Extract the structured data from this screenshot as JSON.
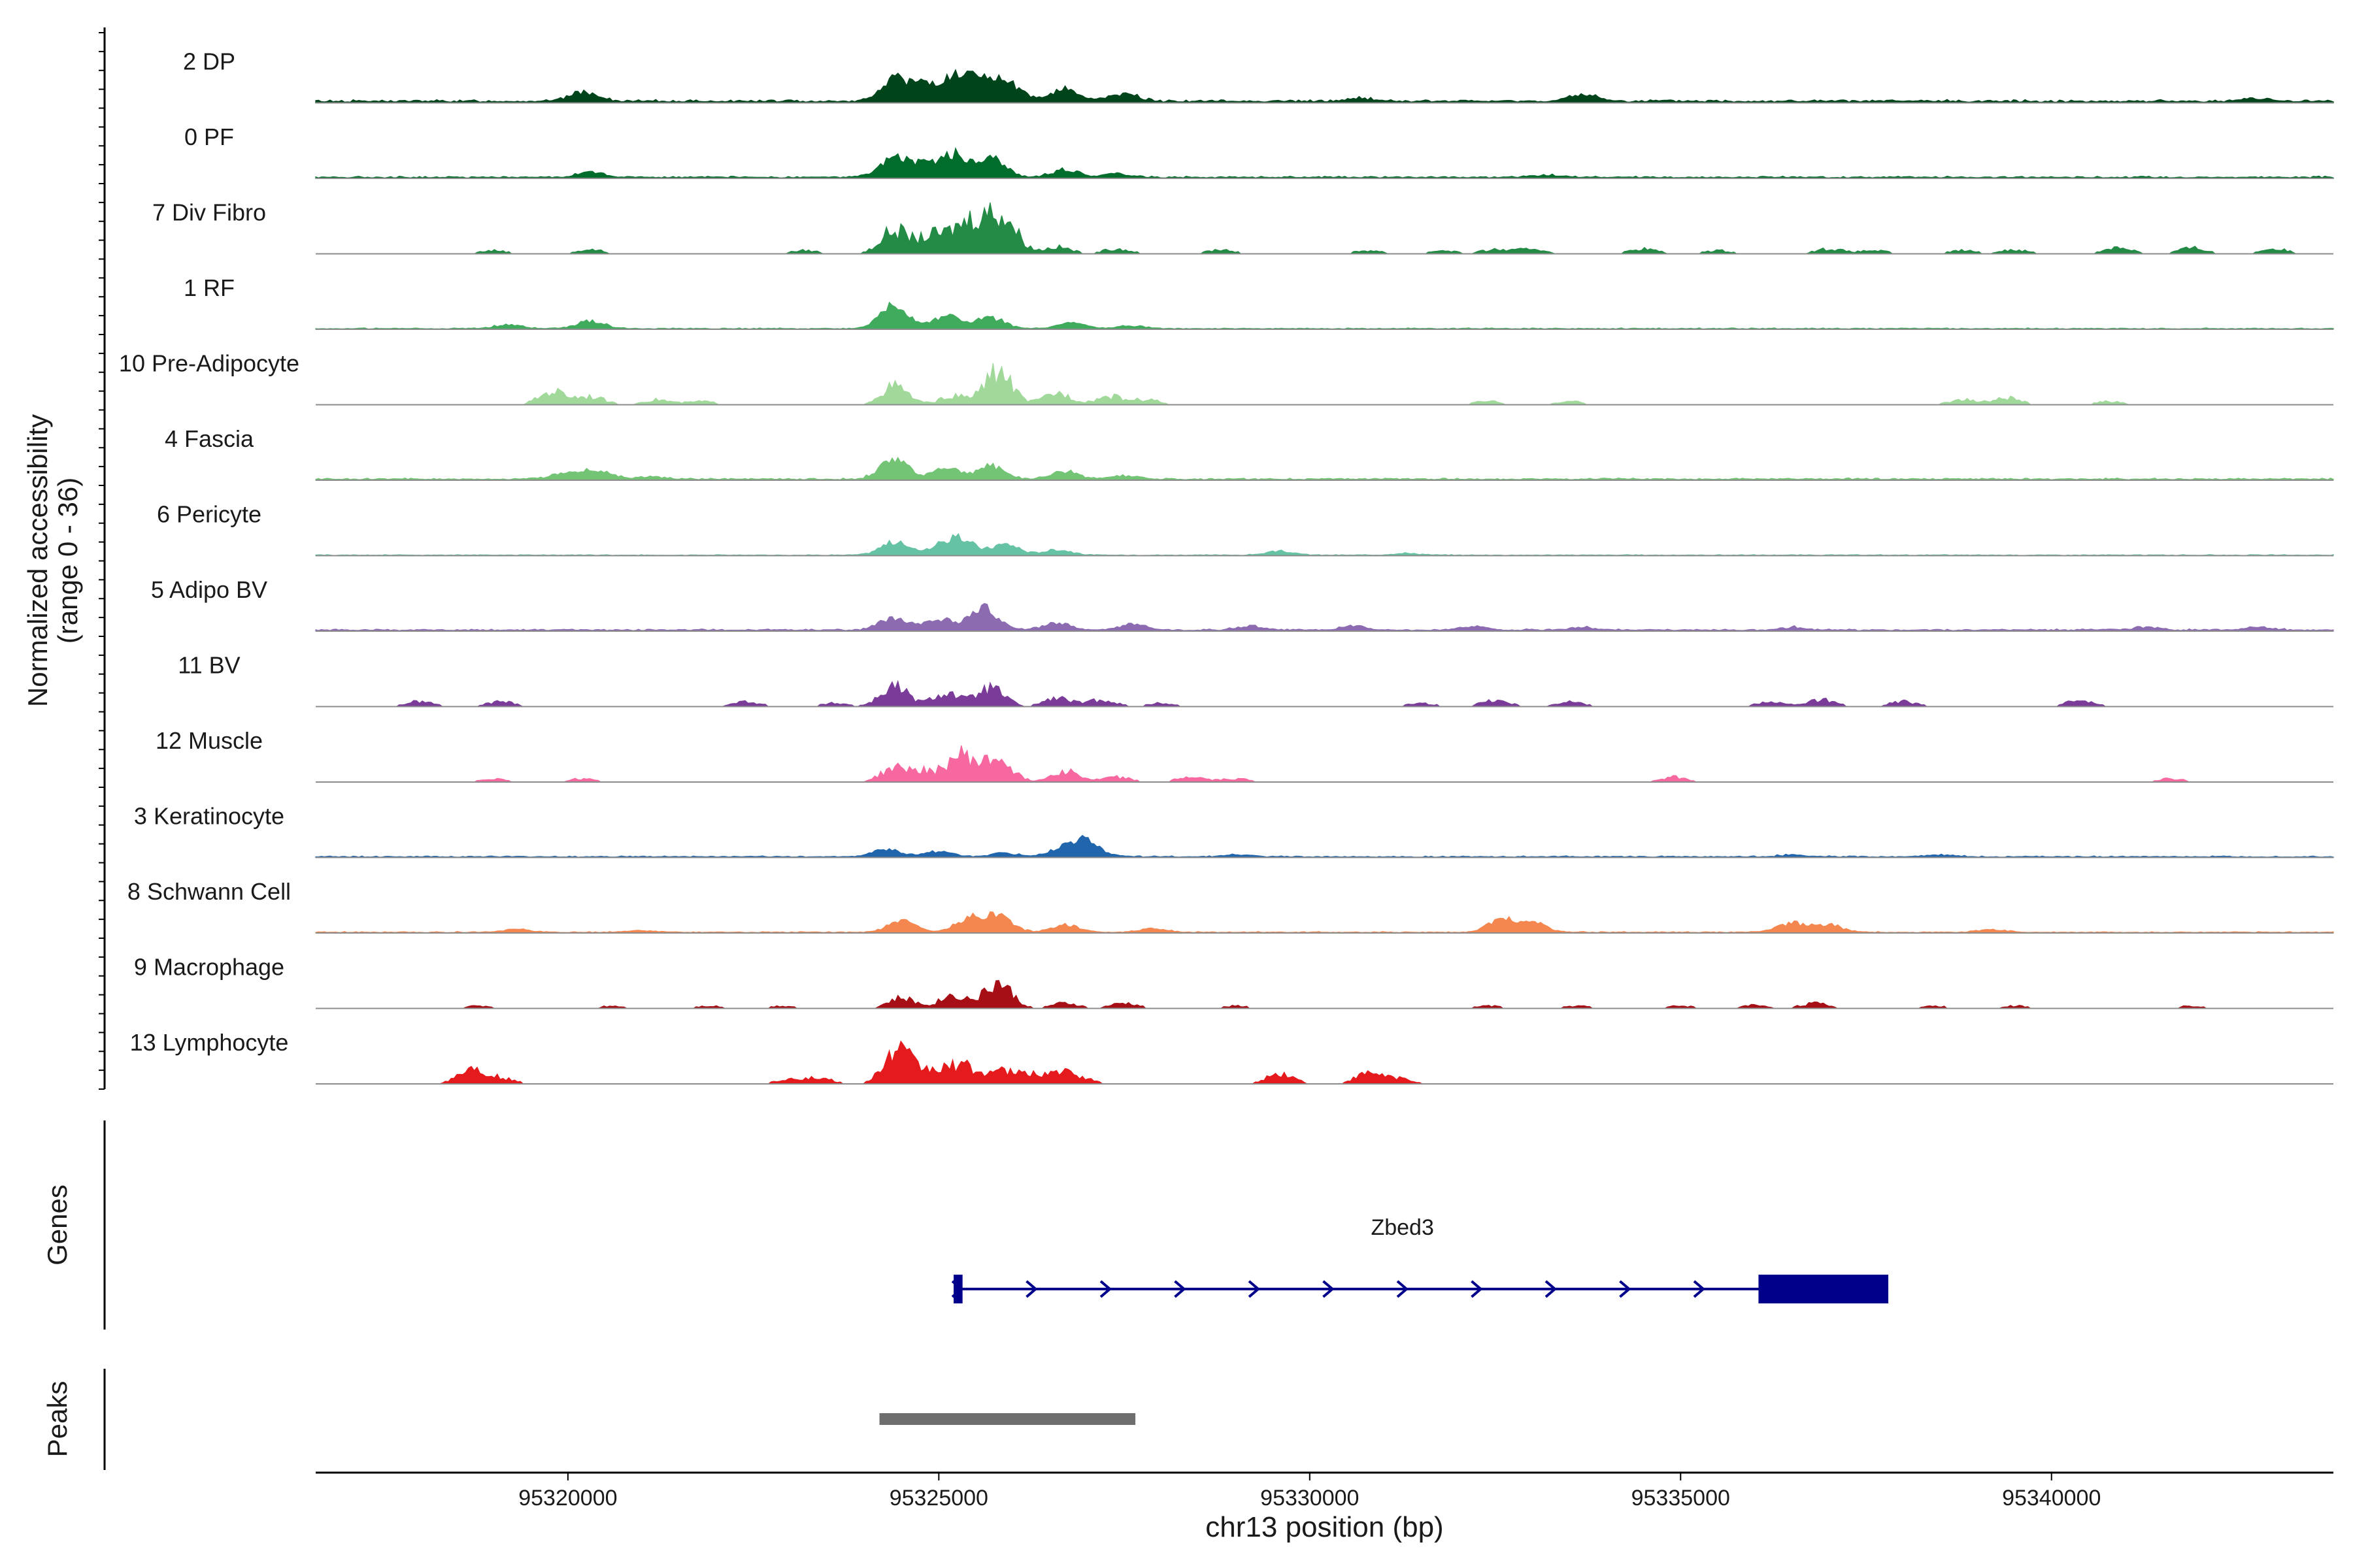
{
  "chart_data": {
    "type": "area",
    "xlabel": "chr13 position (bp)",
    "ylabel_line1": "Normalized accessibility",
    "ylabel_line2": "(range 0 - 36)",
    "y_range": [
      0,
      36
    ],
    "xlim": [
      95316600,
      95343800
    ],
    "xticks": [
      95320000,
      95325000,
      95330000,
      95335000,
      95340000
    ],
    "xtick_labels": [
      "95320000",
      "95325000",
      "95330000",
      "95335000",
      "95340000"
    ],
    "tracks": [
      {
        "name": "2 DP",
        "color": "#00441b",
        "style": "continuous",
        "baseline": 1.2,
        "peaks": [
          [
            95320200,
            5
          ],
          [
            95324400,
            12
          ],
          [
            95324800,
            8
          ],
          [
            95325200,
            10
          ],
          [
            95325500,
            9
          ],
          [
            95325900,
            11
          ],
          [
            95326700,
            7
          ],
          [
            95327500,
            4
          ],
          [
            95330700,
            1.5
          ],
          [
            95333700,
            3.5
          ],
          [
            95342800,
            1.5
          ]
        ]
      },
      {
        "name": "0 PF",
        "color": "#006d2c",
        "style": "continuous",
        "baseline": 0.8,
        "peaks": [
          [
            95320300,
            2.5
          ],
          [
            95324400,
            11
          ],
          [
            95324800,
            6
          ],
          [
            95325200,
            12
          ],
          [
            95325700,
            10
          ],
          [
            95326700,
            4
          ],
          [
            95327400,
            2
          ],
          [
            95333200,
            1
          ]
        ]
      },
      {
        "name": "7 Div Fibro",
        "color": "#238b45",
        "style": "sparse",
        "baseline": 0,
        "peaks": [
          [
            95319000,
            2
          ],
          [
            95320300,
            2.5
          ],
          [
            95323200,
            2
          ],
          [
            95324400,
            14
          ],
          [
            95324900,
            10
          ],
          [
            95325300,
            13
          ],
          [
            95325600,
            16
          ],
          [
            95325900,
            18
          ],
          [
            95326600,
            4
          ],
          [
            95327400,
            3
          ],
          [
            95328800,
            2.5
          ],
          [
            95330800,
            2
          ],
          [
            95331800,
            2
          ],
          [
            95332500,
            2.5
          ],
          [
            95333000,
            3
          ],
          [
            95334500,
            3
          ],
          [
            95335500,
            2
          ],
          [
            95337000,
            3
          ],
          [
            95337600,
            2
          ],
          [
            95338800,
            2
          ],
          [
            95339500,
            2.5
          ],
          [
            95340900,
            4
          ],
          [
            95341900,
            3.5
          ],
          [
            95343000,
            3
          ]
        ]
      },
      {
        "name": "1 RF",
        "color": "#41ab5d",
        "style": "continuous",
        "baseline": 0.5,
        "peaks": [
          [
            95319200,
            2
          ],
          [
            95320300,
            4
          ],
          [
            95324400,
            13
          ],
          [
            95325100,
            7
          ],
          [
            95325700,
            6
          ],
          [
            95326800,
            3
          ],
          [
            95327600,
            1.5
          ]
        ]
      },
      {
        "name": "10 Pre-Adipocyte",
        "color": "#a1d99b",
        "style": "sparse",
        "baseline": 0,
        "peaks": [
          [
            95319800,
            8
          ],
          [
            95320300,
            5
          ],
          [
            95321200,
            3
          ],
          [
            95321800,
            2
          ],
          [
            95324400,
            11
          ],
          [
            95325200,
            5
          ],
          [
            95325800,
            20
          ],
          [
            95326600,
            7
          ],
          [
            95327300,
            5
          ],
          [
            95327800,
            3
          ],
          [
            95332400,
            2
          ],
          [
            95333500,
            2
          ],
          [
            95338800,
            3
          ],
          [
            95339400,
            4
          ],
          [
            95340800,
            2
          ]
        ]
      },
      {
        "name": "4 Fascia",
        "color": "#74c476",
        "style": "continuous",
        "baseline": 0.8,
        "peaks": [
          [
            95320000,
            4
          ],
          [
            95320400,
            5
          ],
          [
            95321100,
            1.5
          ],
          [
            95324400,
            11
          ],
          [
            95325100,
            6
          ],
          [
            95325700,
            7
          ],
          [
            95326700,
            4
          ],
          [
            95327500,
            2
          ]
        ]
      },
      {
        "name": "6 Pericyte",
        "color": "#66c2a4",
        "style": "continuous",
        "baseline": 0.4,
        "peaks": [
          [
            95324400,
            7
          ],
          [
            95325000,
            4
          ],
          [
            95325300,
            8
          ],
          [
            95325900,
            6
          ],
          [
            95326600,
            3
          ],
          [
            95329600,
            2
          ],
          [
            95331300,
            1
          ]
        ]
      },
      {
        "name": "5 Adipo BV",
        "color": "#8c6bb1",
        "style": "continuous",
        "baseline": 0.8,
        "peaks": [
          [
            95324400,
            7
          ],
          [
            95325000,
            6
          ],
          [
            95325600,
            12
          ],
          [
            95326600,
            4
          ],
          [
            95327600,
            3
          ],
          [
            95329200,
            2
          ],
          [
            95330600,
            2
          ],
          [
            95332200,
            2
          ],
          [
            95333700,
            1.5
          ],
          [
            95336500,
            1.5
          ],
          [
            95341300,
            1.5
          ],
          [
            95342800,
            1.5
          ]
        ]
      },
      {
        "name": "11 BV",
        "color": "#7a3c98",
        "style": "sparse",
        "baseline": 0,
        "peaks": [
          [
            95318000,
            3
          ],
          [
            95319100,
            3
          ],
          [
            95322400,
            3
          ],
          [
            95323600,
            2
          ],
          [
            95324400,
            12
          ],
          [
            95325100,
            8
          ],
          [
            95325700,
            11
          ],
          [
            95326600,
            5
          ],
          [
            95327200,
            4
          ],
          [
            95328000,
            2
          ],
          [
            95331500,
            2
          ],
          [
            95332500,
            4
          ],
          [
            95333500,
            3
          ],
          [
            95336200,
            3
          ],
          [
            95336900,
            4
          ],
          [
            95338000,
            3
          ],
          [
            95340400,
            4
          ]
        ]
      },
      {
        "name": "12 Muscle",
        "color": "#f768a1",
        "style": "sparse",
        "baseline": 0,
        "peaks": [
          [
            95319000,
            2
          ],
          [
            95320200,
            2
          ],
          [
            95324400,
            8
          ],
          [
            95324800,
            6
          ],
          [
            95325300,
            16
          ],
          [
            95325800,
            14
          ],
          [
            95326700,
            7
          ],
          [
            95327400,
            3
          ],
          [
            95328400,
            3
          ],
          [
            95329000,
            2
          ],
          [
            95334900,
            3
          ],
          [
            95341600,
            2
          ]
        ]
      },
      {
        "name": "3 Keratinocyte",
        "color": "#2166ac",
        "style": "continuous",
        "baseline": 0.6,
        "peaks": [
          [
            95324300,
            4
          ],
          [
            95325000,
            3
          ],
          [
            95325900,
            2
          ],
          [
            95326700,
            5
          ],
          [
            95327000,
            8
          ],
          [
            95329000,
            1
          ],
          [
            95336500,
            1
          ],
          [
            95338500,
            1
          ]
        ]
      },
      {
        "name": "8 Schwann Cell",
        "color": "#f4874f",
        "style": "continuous",
        "baseline": 0.5,
        "peaks": [
          [
            95319300,
            1.5
          ],
          [
            95321000,
            1
          ],
          [
            95324500,
            6
          ],
          [
            95325400,
            7
          ],
          [
            95325800,
            9
          ],
          [
            95326700,
            4
          ],
          [
            95327900,
            2
          ],
          [
            95332600,
            7
          ],
          [
            95333000,
            5
          ],
          [
            95336500,
            5
          ],
          [
            95337000,
            4
          ],
          [
            95339200,
            1.5
          ]
        ]
      },
      {
        "name": "9 Macrophage",
        "color": "#a50f15",
        "style": "sparse",
        "baseline": 0,
        "peaks": [
          [
            95318800,
            1.5
          ],
          [
            95320600,
            1.5
          ],
          [
            95321900,
            1.5
          ],
          [
            95322900,
            1.5
          ],
          [
            95324500,
            6
          ],
          [
            95325200,
            8
          ],
          [
            95325800,
            15
          ],
          [
            95326700,
            3
          ],
          [
            95327500,
            3
          ],
          [
            95329000,
            1.5
          ],
          [
            95332400,
            1.5
          ],
          [
            95333600,
            1.5
          ],
          [
            95335000,
            1.5
          ],
          [
            95336000,
            2
          ],
          [
            95336800,
            3
          ],
          [
            95338400,
            1.5
          ],
          [
            95339500,
            1.5
          ],
          [
            95341900,
            1.5
          ]
        ]
      },
      {
        "name": "13 Lymphocyte",
        "color": "#e41a1c",
        "style": "sparse",
        "baseline": 0,
        "peaks": [
          [
            95318700,
            9
          ],
          [
            95319100,
            3
          ],
          [
            95323000,
            3
          ],
          [
            95323400,
            3
          ],
          [
            95324450,
            20
          ],
          [
            95324900,
            7
          ],
          [
            95325300,
            11
          ],
          [
            95325800,
            7
          ],
          [
            95326200,
            5
          ],
          [
            95326600,
            6
          ],
          [
            95326900,
            3
          ],
          [
            95329600,
            6
          ],
          [
            95330800,
            6
          ],
          [
            95331200,
            3
          ]
        ]
      }
    ],
    "genes_label": "Genes",
    "gene": {
      "name": "Zbed3",
      "start": 95325200,
      "end": 95337800,
      "strand": "+",
      "exons": [
        [
          95325200,
          95325320
        ],
        [
          95336050,
          95337800
        ]
      ]
    },
    "peaks_label": "Peaks",
    "peak_regions": [
      [
        95324200,
        95327650
      ]
    ]
  }
}
